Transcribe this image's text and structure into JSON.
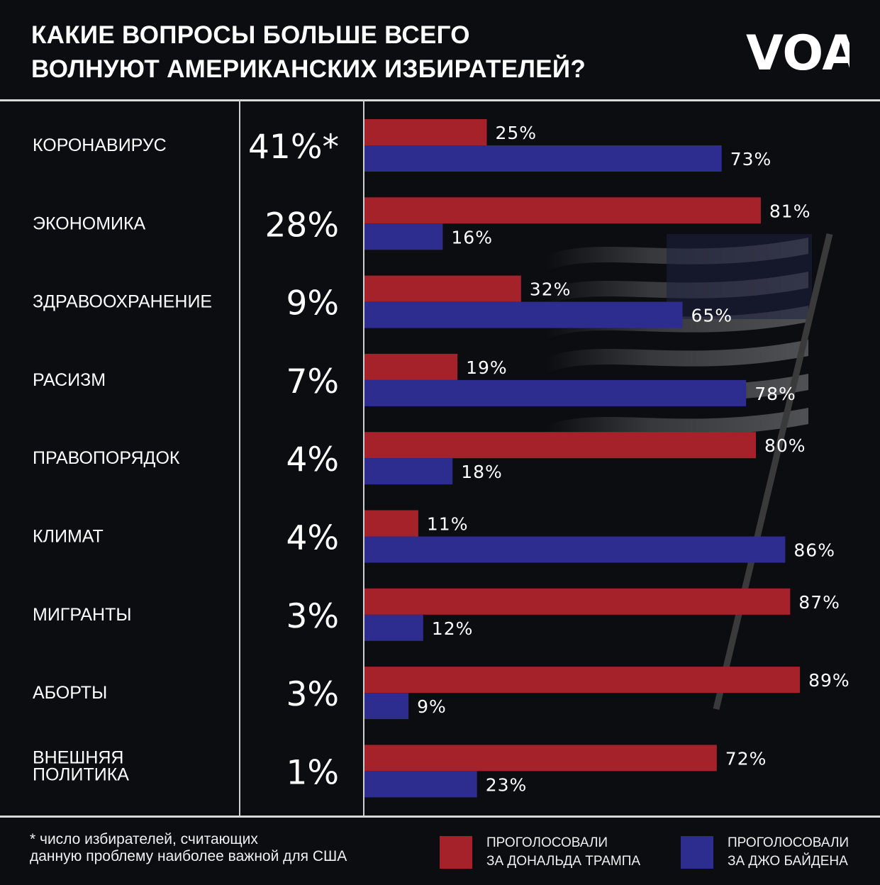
{
  "title": {
    "line1": "КАКИЕ ВОПРОСЫ БОЛЬШЕ ВСЕГО",
    "line2": "ВОЛНУЮТ АМЕРИКАНСКИХ ИЗБИРАТЕЛЕЙ?"
  },
  "logo_text": "VOA",
  "colors": {
    "trump": "#a5222b",
    "biden": "#2d2c8f",
    "background": "#0c0d11"
  },
  "footnote": {
    "line1": "* число избирателей, считающих",
    "line2": "данную проблему наиболее важной для США"
  },
  "legend": {
    "trump": {
      "line1": "ПРОГОЛОСОВАЛИ",
      "line2": "ЗА ДОНАЛЬДА ТРАМПА"
    },
    "biden": {
      "line1": "ПРОГОЛОСОВАЛИ",
      "line2": "ЗА ДЖО БАЙДЕНА"
    }
  },
  "chart_data": {
    "type": "bar",
    "orientation": "horizontal",
    "title": "КАКИЕ ВОПРОСЫ БОЛЬШЕ ВСЕГО ВОЛНУЮТ АМЕРИКАНСКИХ ИЗБИРАТЕЛЕЙ?",
    "xlim": [
      0,
      100
    ],
    "grid": false,
    "legend_position": "bottom",
    "categories": [
      [
        "КОРОНАВИРУС"
      ],
      [
        "ЭКОНОМИКА"
      ],
      [
        "ЗДРАВООХРАНЕНИЕ"
      ],
      [
        "РАСИЗМ"
      ],
      [
        "ПРАВОПОРЯДОК"
      ],
      [
        "КЛИМАТ"
      ],
      [
        "МИГРАНТЫ"
      ],
      [
        "АБОРТЫ"
      ],
      [
        "ВНЕШНЯЯ",
        "ПОЛИТИКА"
      ]
    ],
    "importance_labels": [
      "41%*",
      "28%",
      "9%",
      "7%",
      "4%",
      "4%",
      "3%",
      "3%",
      "1%"
    ],
    "series": [
      {
        "name": "ПРОГОЛОСОВАЛИ ЗА ДОНАЛЬДА ТРАМПА",
        "values": [
          25,
          81,
          32,
          19,
          80,
          11,
          87,
          89,
          72
        ],
        "labels": [
          "25%",
          "81%",
          "32%",
          "19%",
          "80%",
          "11%",
          "87%",
          "89%",
          "72%"
        ]
      },
      {
        "name": "ПРОГОЛОСОВАЛИ ЗА ДЖО БАЙДЕНА",
        "values": [
          73,
          16,
          65,
          78,
          18,
          86,
          12,
          9,
          23
        ],
        "labels": [
          "73%",
          "16%",
          "65%",
          "78%",
          "18%",
          "86%",
          "12%",
          "9%",
          "23%"
        ]
      }
    ]
  }
}
